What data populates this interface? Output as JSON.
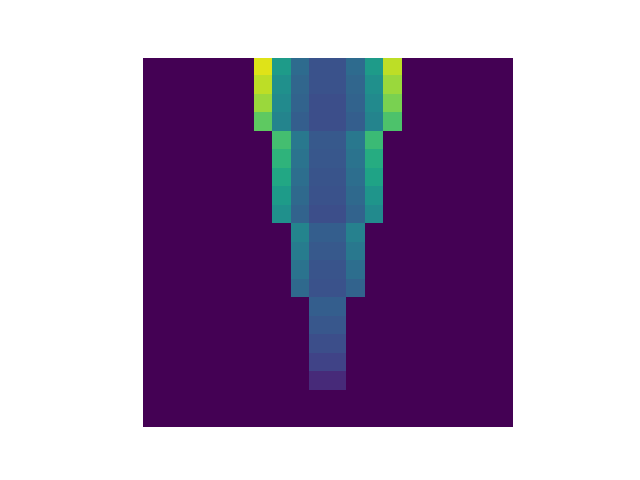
{
  "chart_data": {
    "type": "heatmap",
    "color": "viridis",
    "tick_labels": false,
    "color_range": [
      0,
      1
    ],
    "cells": [
      [
        0,
        0,
        0,
        0,
        0,
        0,
        0.95,
        0.55,
        0.35,
        0.25,
        0.25,
        0.35,
        0.55,
        0.9,
        0,
        0,
        0,
        0,
        0,
        0
      ],
      [
        0,
        0,
        0,
        0,
        0,
        0,
        0.9,
        0.5,
        0.33,
        0.25,
        0.25,
        0.33,
        0.5,
        0.85,
        0,
        0,
        0,
        0,
        0,
        0
      ],
      [
        0,
        0,
        0,
        0,
        0,
        0,
        0.85,
        0.48,
        0.32,
        0.24,
        0.24,
        0.32,
        0.48,
        0.8,
        0,
        0,
        0,
        0,
        0,
        0
      ],
      [
        0,
        0,
        0,
        0,
        0,
        0,
        0.75,
        0.45,
        0.3,
        0.24,
        0.24,
        0.3,
        0.45,
        0.72,
        0,
        0,
        0,
        0,
        0,
        0
      ],
      [
        0,
        0,
        0,
        0,
        0,
        0,
        0,
        0.7,
        0.4,
        0.28,
        0.28,
        0.4,
        0.68,
        0,
        0,
        0,
        0,
        0,
        0,
        0
      ],
      [
        0,
        0,
        0,
        0,
        0,
        0,
        0,
        0.65,
        0.38,
        0.27,
        0.27,
        0.38,
        0.62,
        0,
        0,
        0,
        0,
        0,
        0,
        0
      ],
      [
        0,
        0,
        0,
        0,
        0,
        0,
        0,
        0.6,
        0.36,
        0.26,
        0.26,
        0.36,
        0.58,
        0,
        0,
        0,
        0,
        0,
        0,
        0
      ],
      [
        0,
        0,
        0,
        0,
        0,
        0,
        0,
        0.55,
        0.34,
        0.25,
        0.25,
        0.34,
        0.52,
        0,
        0,
        0,
        0,
        0,
        0,
        0
      ],
      [
        0,
        0,
        0,
        0,
        0,
        0,
        0,
        0.5,
        0.32,
        0.24,
        0.24,
        0.32,
        0.48,
        0,
        0,
        0,
        0,
        0,
        0,
        0
      ],
      [
        0,
        0,
        0,
        0,
        0,
        0,
        0,
        0,
        0.45,
        0.3,
        0.3,
        0.44,
        0,
        0,
        0,
        0,
        0,
        0,
        0,
        0
      ],
      [
        0,
        0,
        0,
        0,
        0,
        0,
        0,
        0,
        0.42,
        0.28,
        0.28,
        0.4,
        0,
        0,
        0,
        0,
        0,
        0,
        0,
        0
      ],
      [
        0,
        0,
        0,
        0,
        0,
        0,
        0,
        0,
        0.38,
        0.26,
        0.26,
        0.36,
        0,
        0,
        0,
        0,
        0,
        0,
        0,
        0
      ],
      [
        0,
        0,
        0,
        0,
        0,
        0,
        0,
        0,
        0.34,
        0.25,
        0.25,
        0.32,
        0,
        0,
        0,
        0,
        0,
        0,
        0,
        0
      ],
      [
        0,
        0,
        0,
        0,
        0,
        0,
        0,
        0,
        0,
        0.3,
        0.3,
        0,
        0,
        0,
        0,
        0,
        0,
        0,
        0,
        0
      ],
      [
        0,
        0,
        0,
        0,
        0,
        0,
        0,
        0,
        0,
        0.27,
        0.27,
        0,
        0,
        0,
        0,
        0,
        0,
        0,
        0,
        0
      ],
      [
        0,
        0,
        0,
        0,
        0,
        0,
        0,
        0,
        0,
        0.24,
        0.24,
        0,
        0,
        0,
        0,
        0,
        0,
        0,
        0,
        0
      ],
      [
        0,
        0,
        0,
        0,
        0,
        0,
        0,
        0,
        0,
        0.2,
        0.2,
        0,
        0,
        0,
        0,
        0,
        0,
        0,
        0,
        0
      ],
      [
        0,
        0,
        0,
        0,
        0,
        0,
        0,
        0,
        0,
        0.12,
        0.12,
        0,
        0,
        0,
        0,
        0,
        0,
        0,
        0,
        0
      ],
      [
        0,
        0,
        0,
        0,
        0,
        0,
        0,
        0,
        0,
        0,
        0,
        0,
        0,
        0,
        0,
        0,
        0,
        0,
        0,
        0
      ],
      [
        0,
        0,
        0,
        0,
        0,
        0,
        0,
        0,
        0,
        0,
        0,
        0,
        0,
        0,
        0,
        0,
        0,
        0,
        0,
        0
      ]
    ]
  }
}
